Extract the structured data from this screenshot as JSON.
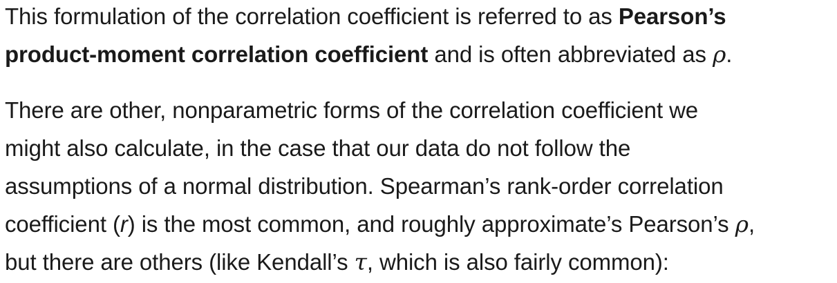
{
  "paragraph1": {
    "line1_plain": "This formulation of the correlation coefficient is referred to as ",
    "line1_bold": "Pearson’s",
    "line2_bold": "product-moment correlation coefficient",
    "line2_plain": " and is often abbreviated as ",
    "line2_symbol": "ρ",
    "line2_end": "."
  },
  "paragraph2": {
    "line3": "There are other, nonparametric forms of the correlation coefficient we",
    "line4": "might also calculate, in the case that our data do not follow the",
    "line5": "assumptions of a normal distribution. Spearman’s rank-order correlation",
    "line6_start": "coefficient (",
    "line6_symbol_r": "r",
    "line6_mid": ") is the most common, and roughly approximate’s Pearson’s ",
    "line6_symbol_rho": "ρ",
    "line6_end": ",",
    "line7_start": "but there are others (like Kendall’s ",
    "line7_symbol_tau": "τ",
    "line7_end": ", which is also fairly common):"
  }
}
